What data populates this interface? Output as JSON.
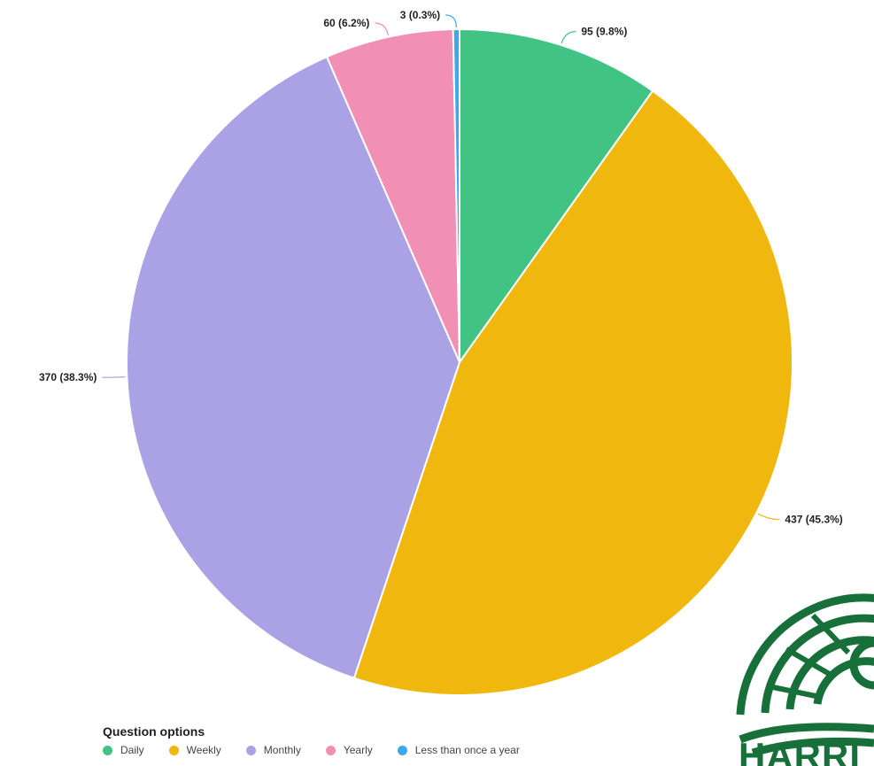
{
  "chart_data": {
    "type": "pie",
    "categories": [
      "Daily",
      "Weekly",
      "Monthly",
      "Yearly",
      "Less than once a year"
    ],
    "values": [
      95,
      437,
      370,
      60,
      3
    ],
    "percentages": [
      "9.8%",
      "45.3%",
      "38.3%",
      "6.2%",
      "0.3%"
    ],
    "slice_labels": [
      "95 (9.8%)",
      "437 (45.3%)",
      "370 (38.3%)",
      "60 (6.2%)",
      "3 (0.3%)"
    ],
    "colors": [
      "#41c383",
      "#f0b70f",
      "#aba2e6",
      "#f190b4",
      "#3ea8ec"
    ],
    "start": "top",
    "direction": "clockwise",
    "legend_title": "Question options",
    "legend_placement": "bottom-left"
  },
  "logo": {
    "text": "HARRI",
    "color": "#17703a"
  }
}
